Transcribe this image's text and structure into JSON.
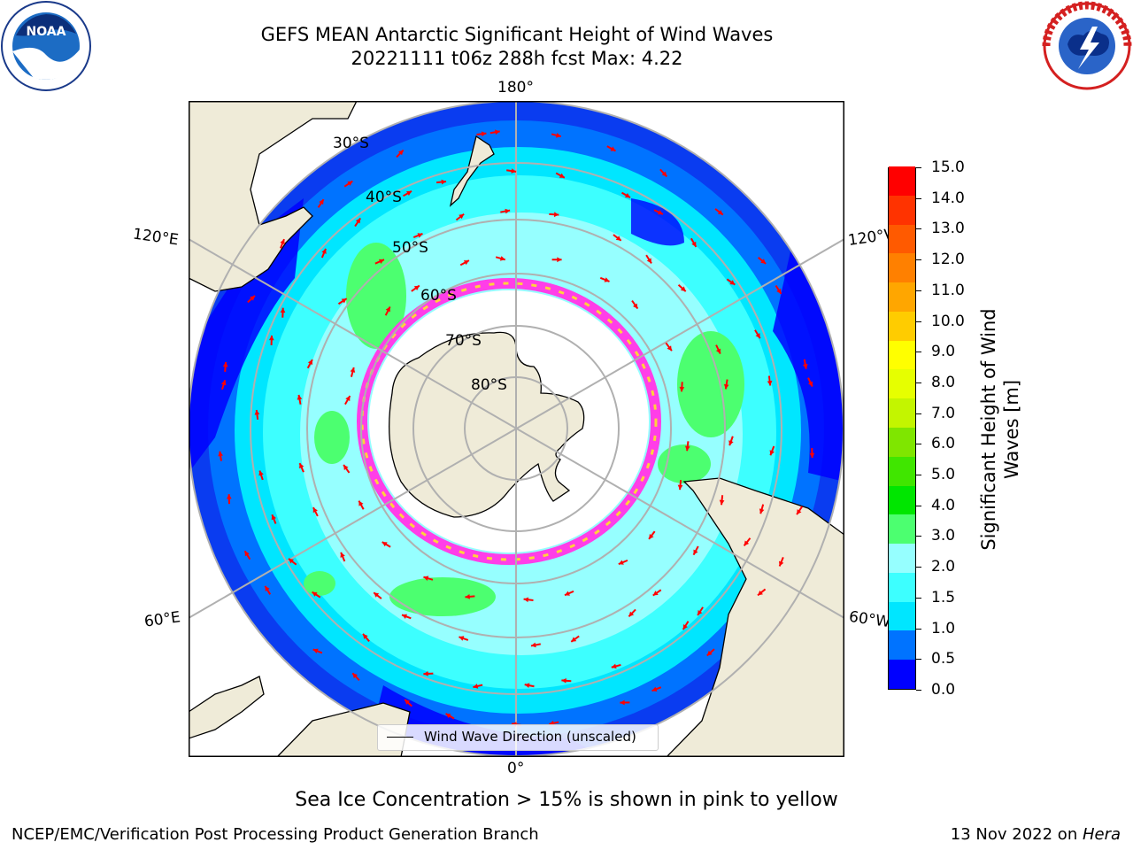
{
  "title": {
    "line1": "GEFS MEAN Antarctic Significant Height of Wind Waves",
    "line2": "20221111 t06z 288h fcst   Max: 4.22"
  },
  "logos": {
    "left": {
      "icon": "noaa-logo-icon",
      "text": "NOAA"
    },
    "right": {
      "icon": "nws-logo-icon",
      "text": "NATIONAL WEATHER SERVICE"
    }
  },
  "map": {
    "projection": "south-polar-stereographic",
    "longitude_labels": {
      "top": "180°",
      "upper_left": "120°E",
      "upper_right": "120°W",
      "lower_left": "60°E",
      "lower_right": "60°W",
      "bottom": "0°"
    },
    "latitude_labels": [
      "30°S",
      "40°S",
      "50°S",
      "60°S",
      "70°S",
      "80°S"
    ],
    "legend": "Wind Wave Direction (unscaled)",
    "colors": {
      "land": "#efebd8",
      "ice_pink": "#ff3ee8",
      "ice_yellow": "#ffd23c",
      "arrow": "#ff0000",
      "grid": "#b0b0b0"
    }
  },
  "colorbar": {
    "title_line1": "Significant Height of Wind",
    "title_line2": "Waves [m]",
    "ticks": [
      "15.0",
      "14.0",
      "13.0",
      "12.0",
      "11.0",
      "10.0",
      "9.0",
      "8.0",
      "7.0",
      "6.0",
      "5.0",
      "4.0",
      "3.0",
      "2.0",
      "1.5",
      "1.0",
      "0.5",
      "0.0"
    ],
    "colors": [
      "#0000ff",
      "#0073ff",
      "#00e6ff",
      "#3dffff",
      "#96ffff",
      "#4cff70",
      "#00e600",
      "#40e600",
      "#7fe600",
      "#c3f500",
      "#e6ff00",
      "#ffff00",
      "#ffcc00",
      "#ffa600",
      "#ff8000",
      "#ff5a00",
      "#ff3300",
      "#ff0000"
    ]
  },
  "note": "Sea Ice Concentration > 15% is shown in pink to yellow",
  "footer": {
    "left": "NCEP/EMC/Verification Post Processing Product Generation Branch",
    "right_prefix": "13 Nov 2022 on ",
    "right_host": "Hera"
  }
}
